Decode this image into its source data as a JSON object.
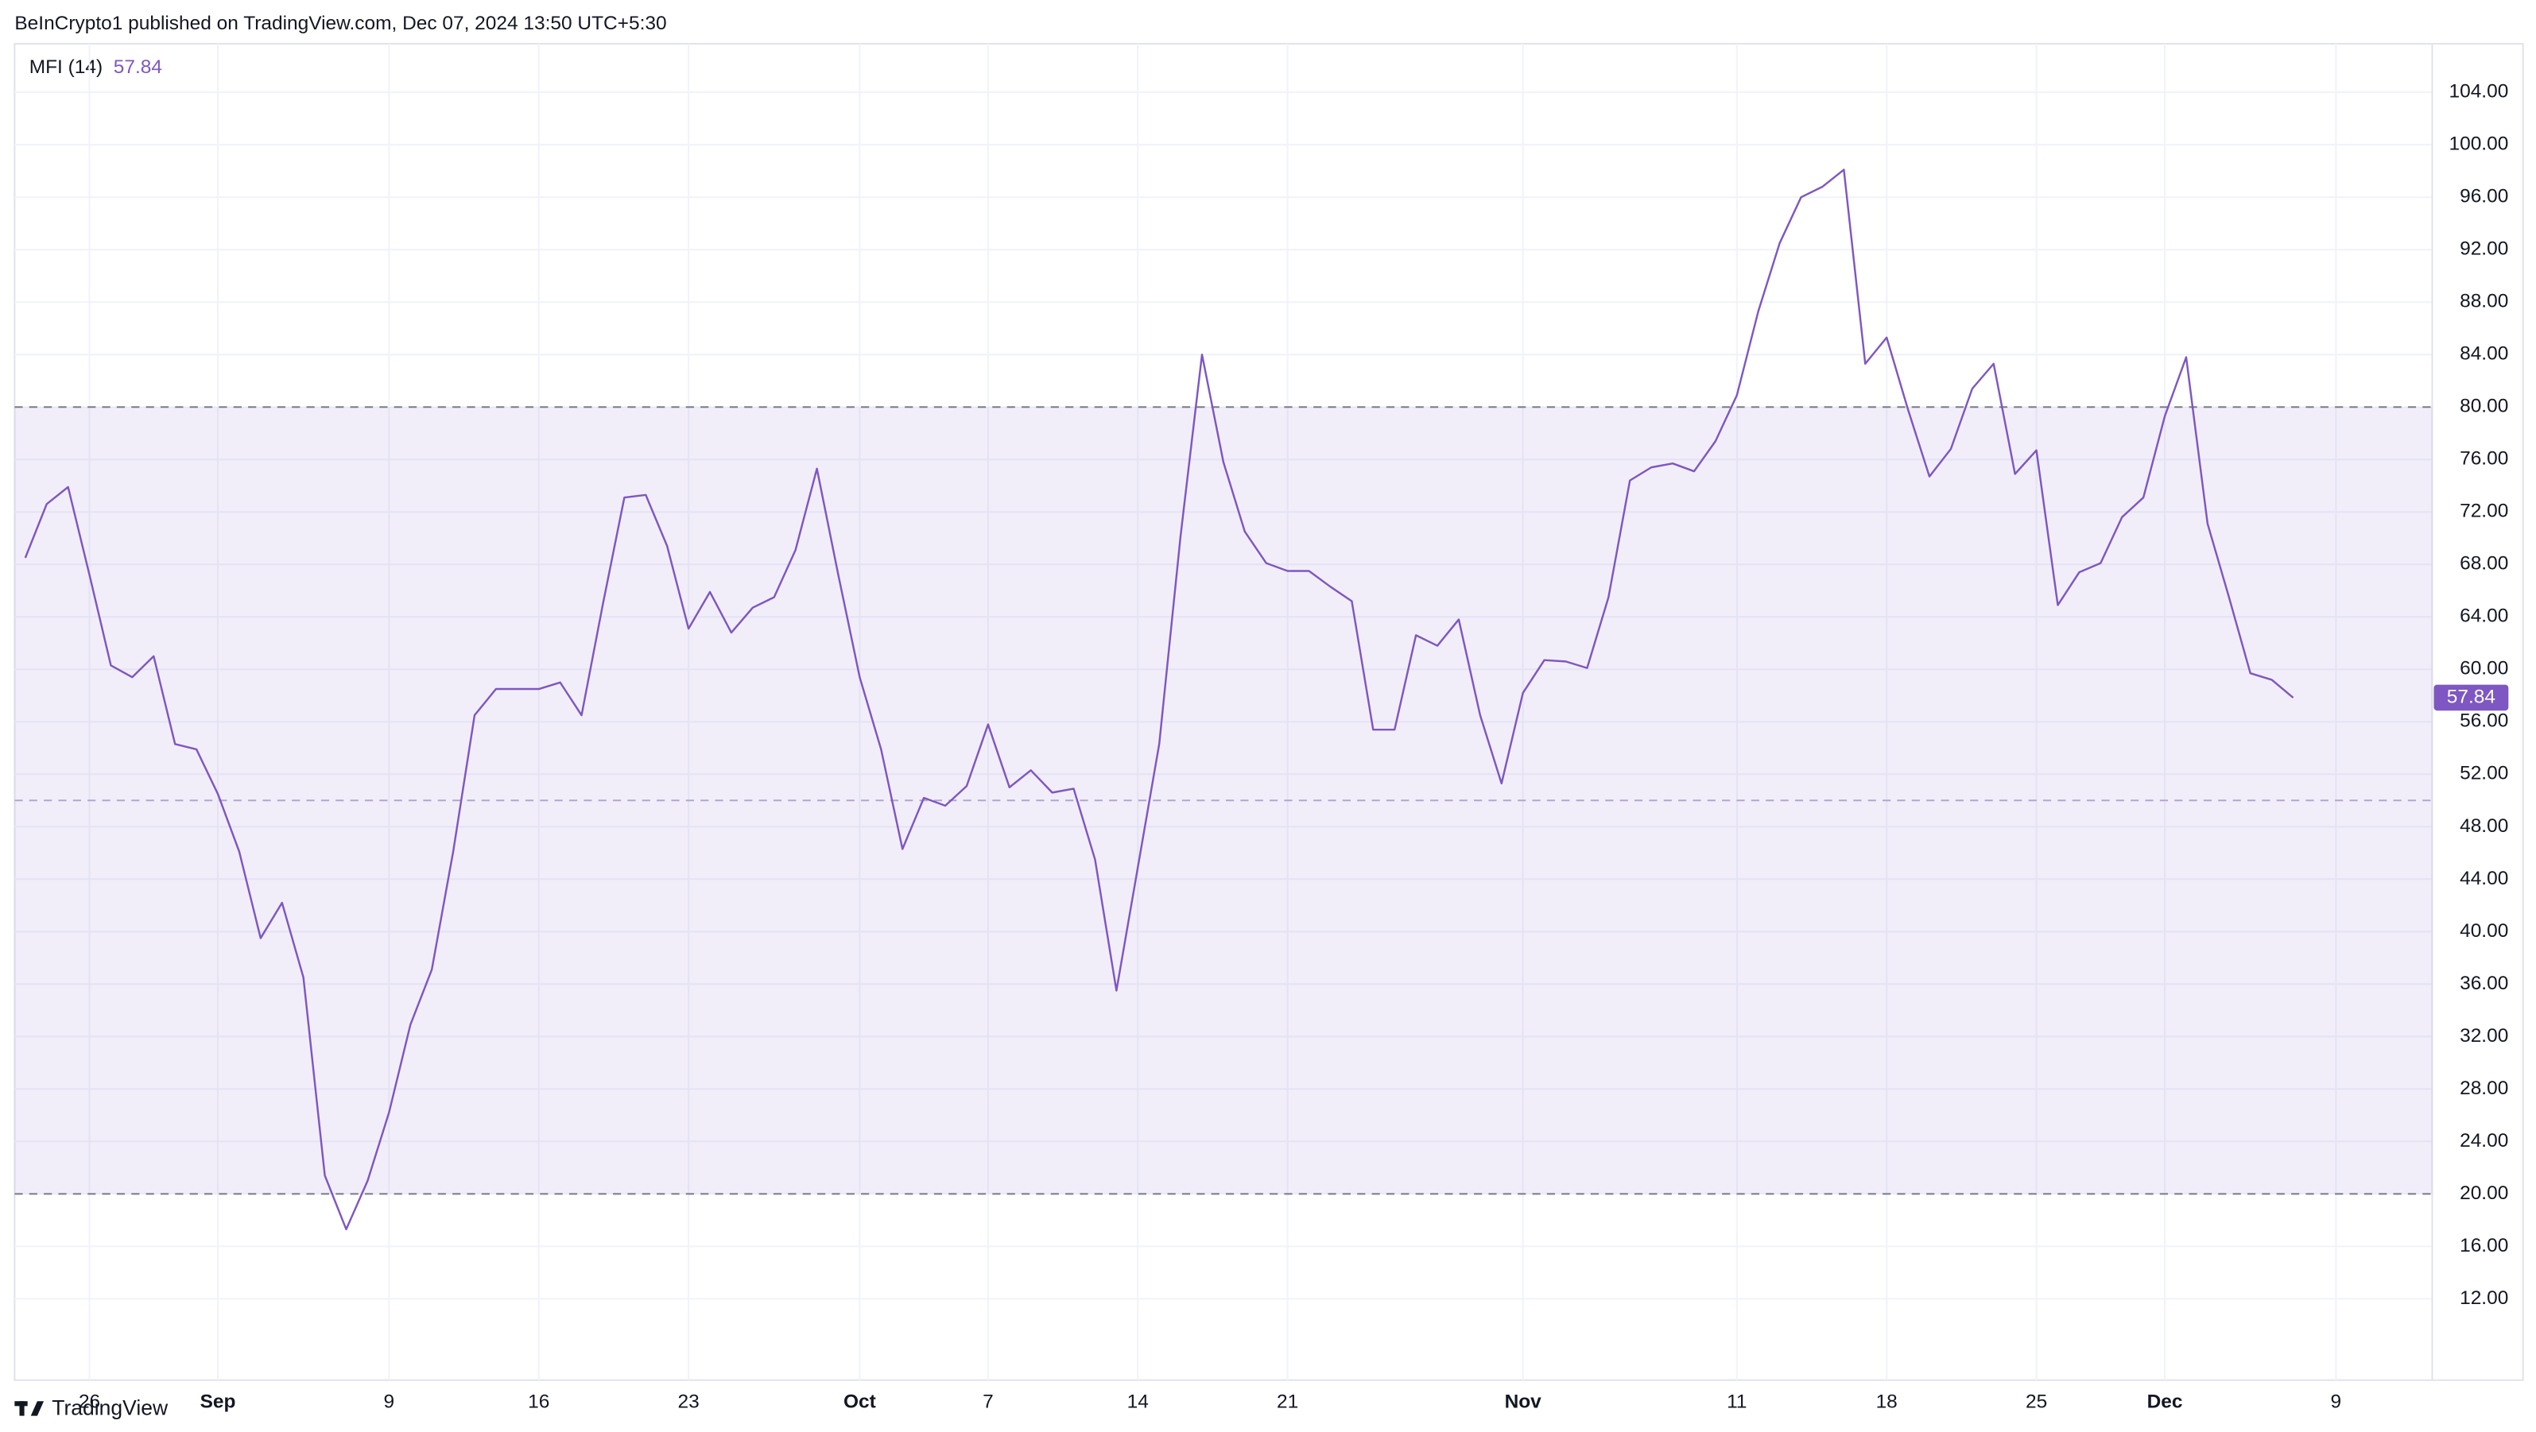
{
  "header": {
    "publisher": "BeInCrypto1 published on TradingView.com, Dec 07, 2024 13:50 UTC+5:30"
  },
  "footer": {
    "brand": "TradingView"
  },
  "chart_data": {
    "type": "line",
    "indicator": "MFI (14)",
    "categories": [
      null,
      null,
      null,
      "26",
      null,
      null,
      null,
      null,
      null,
      "Sep",
      null,
      null,
      null,
      null,
      null,
      null,
      null,
      "9",
      null,
      null,
      null,
      null,
      null,
      null,
      "16",
      null,
      null,
      null,
      null,
      null,
      null,
      "23",
      null,
      null,
      null,
      null,
      null,
      null,
      null,
      "Oct",
      null,
      null,
      null,
      null,
      null,
      "7",
      null,
      null,
      null,
      null,
      null,
      null,
      "14",
      null,
      null,
      null,
      null,
      null,
      null,
      "21",
      null,
      null,
      null,
      null,
      null,
      null,
      null,
      null,
      null,
      null,
      "Nov",
      null,
      null,
      null,
      null,
      null,
      null,
      null,
      null,
      null,
      "11",
      null,
      null,
      null,
      null,
      null,
      null,
      "18",
      null,
      null,
      null,
      null,
      null,
      null,
      "25",
      null,
      null,
      null,
      null,
      null,
      "Dec",
      null,
      null,
      null,
      null,
      null,
      null,
      null,
      "9",
      null,
      null,
      null,
      null
    ],
    "series": [
      {
        "name": "MFI",
        "color": "#7e57c2",
        "values": [
          68.5,
          72.6,
          73.9,
          67.2,
          60.3,
          59.4,
          61.0,
          54.3,
          53.9,
          50.5,
          46.1,
          39.5,
          42.2,
          36.5,
          21.4,
          17.3,
          21.0,
          26.2,
          32.9,
          37.1,
          46.1,
          56.5,
          58.5,
          58.5,
          58.5,
          59.0,
          56.5,
          65.0,
          73.1,
          73.3,
          69.4,
          63.1,
          65.9,
          62.8,
          64.7,
          65.5,
          69.1,
          75.3,
          67.2,
          59.4,
          53.9,
          46.3,
          50.2,
          49.6,
          51.1,
          55.8,
          51.0,
          52.3,
          50.6,
          50.9,
          45.5,
          35.5,
          44.9,
          54.3,
          70.2,
          84.0,
          75.8,
          70.5,
          68.1,
          67.5,
          67.5,
          66.3,
          65.2,
          55.4,
          55.4,
          62.6,
          61.8,
          63.8,
          56.5,
          51.3,
          58.2,
          60.7,
          60.6,
          60.1,
          65.5,
          74.4,
          75.4,
          75.7,
          75.1,
          77.4,
          80.9,
          87.3,
          92.5,
          96.0,
          96.8,
          98.1,
          83.3,
          85.3,
          79.8,
          74.7,
          76.8,
          81.4,
          83.3,
          74.9,
          76.7,
          64.9,
          67.4,
          68.1,
          71.6,
          73.1,
          79.3,
          83.8,
          71.1,
          65.5,
          59.7,
          59.2,
          57.84,
          null,
          null,
          null,
          null,
          null,
          null
        ]
      }
    ],
    "ylim": [
      5.8,
      107.7
    ],
    "yticks": [
      {
        "value": 12,
        "label": "12.00"
      },
      {
        "value": 16,
        "label": "16.00"
      },
      {
        "value": 20,
        "label": "20.00"
      },
      {
        "value": 24,
        "label": "24.00"
      },
      {
        "value": 28,
        "label": "28.00"
      },
      {
        "value": 32,
        "label": "32.00"
      },
      {
        "value": 36,
        "label": "36.00"
      },
      {
        "value": 40,
        "label": "40.00"
      },
      {
        "value": 44,
        "label": "44.00"
      },
      {
        "value": 48,
        "label": "48.00"
      },
      {
        "value": 52,
        "label": "52.00"
      },
      {
        "value": 56,
        "label": "56.00"
      },
      {
        "value": 60,
        "label": "60.00"
      },
      {
        "value": 64,
        "label": "64.00"
      },
      {
        "value": 68,
        "label": "68.00"
      },
      {
        "value": 72,
        "label": "72.00"
      },
      {
        "value": 76,
        "label": "76.00"
      },
      {
        "value": 80,
        "label": "80.00"
      },
      {
        "value": 84,
        "label": "84.00"
      },
      {
        "value": 88,
        "label": "88.00"
      },
      {
        "value": 92,
        "label": "92.00"
      },
      {
        "value": 96,
        "label": "96.00"
      },
      {
        "value": 100,
        "label": "100.00"
      },
      {
        "value": 104,
        "label": "104.00"
      }
    ],
    "band_levels": [
      20,
      50,
      80
    ],
    "band_color": "#7e57c2",
    "grid": true,
    "y_axis_side": "right"
  }
}
